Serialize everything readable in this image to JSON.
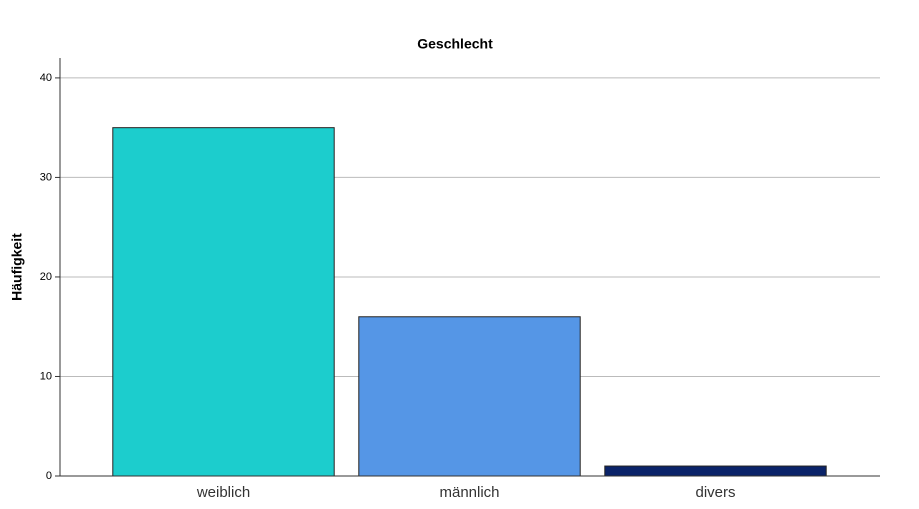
{
  "chart_data": {
    "type": "bar",
    "title": "Geschlecht",
    "y_label": "Häufigkeit",
    "categories": [
      "weiblich",
      "männlich",
      "divers"
    ],
    "values": [
      35,
      16,
      1
    ],
    "colors": [
      "#1ccdcd",
      "#5596e6",
      "#0a2369"
    ],
    "ylim": [
      0,
      42
    ],
    "yticks": [
      0,
      10,
      20,
      30,
      40
    ],
    "grid": true
  }
}
